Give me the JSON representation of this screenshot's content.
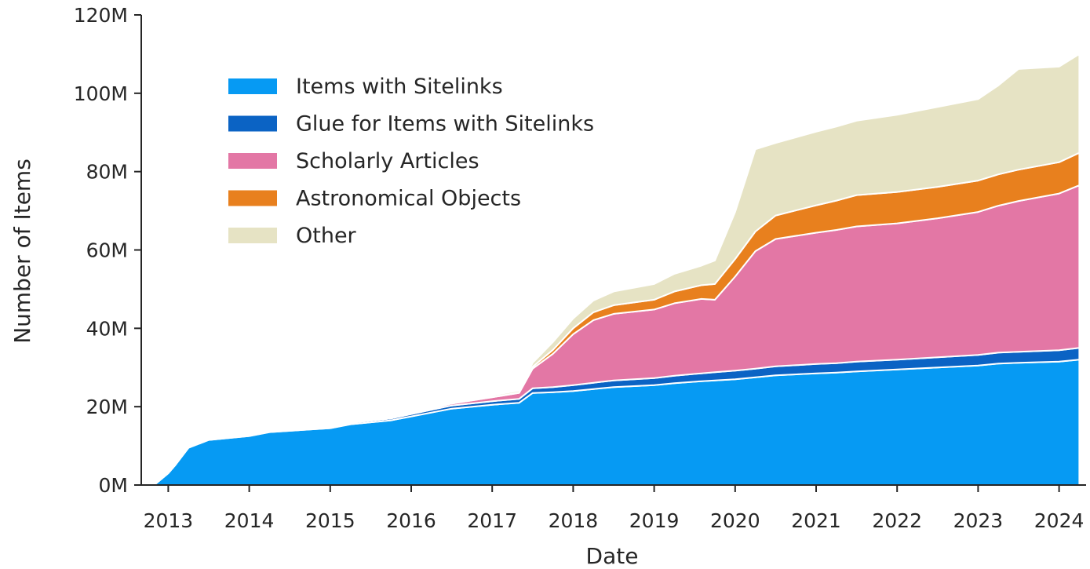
{
  "chart_data": {
    "type": "area",
    "stacked": true,
    "xlabel": "Date",
    "ylabel": "Number of Items",
    "x_ticks": [
      "2013",
      "2014",
      "2015",
      "2016",
      "2017",
      "2018",
      "2019",
      "2020",
      "2021",
      "2022",
      "2023",
      "2024"
    ],
    "y_ticks": [
      "0M",
      "20M",
      "40M",
      "60M",
      "80M",
      "100M",
      "120M"
    ],
    "ylim": [
      0,
      120
    ],
    "y_unit": "M",
    "xlim": [
      "2012-09",
      "2024-05"
    ],
    "legend_position": "upper-left",
    "grid": false,
    "x": [
      "2012-10-29",
      "2013-01",
      "2013-02",
      "2013-04",
      "2013-07",
      "2014-01",
      "2014-04",
      "2015-01",
      "2015-04",
      "2015-10",
      "2016-01",
      "2016-07",
      "2017-01",
      "2017-05",
      "2017-07",
      "2017-10",
      "2018-01",
      "2018-04",
      "2018-07",
      "2019-01",
      "2019-04",
      "2019-08",
      "2019-10",
      "2020-01",
      "2020-04",
      "2020-07",
      "2021-01",
      "2021-04",
      "2021-07",
      "2022-01",
      "2022-07",
      "2023-01",
      "2023-04",
      "2023-07",
      "2024-01",
      "2024-04"
    ],
    "series": [
      {
        "name": "Items with Sitelinks",
        "color": "#069af3",
        "values": [
          0,
          3,
          5,
          9.5,
          11.5,
          12.5,
          13.5,
          14.5,
          15.5,
          16.5,
          17.5,
          19.5,
          20.5,
          21,
          23.5,
          23.7,
          24,
          24.5,
          25,
          25.5,
          26,
          26.5,
          26.7,
          27,
          27.5,
          28,
          28.5,
          28.7,
          29,
          29.5,
          30,
          30.5,
          31,
          31.2,
          31.5,
          32
        ]
      },
      {
        "name": "Glue for Items with Sitelinks",
        "color": "#0b63c4",
        "values": [
          0,
          0,
          0,
          0.1,
          0.1,
          0.2,
          0.2,
          0.3,
          0.4,
          0.5,
          0.6,
          0.8,
          0.9,
          1,
          1.2,
          1.3,
          1.5,
          1.6,
          1.7,
          1.8,
          1.9,
          2,
          2.1,
          2.2,
          2.2,
          2.3,
          2.4,
          2.4,
          2.5,
          2.5,
          2.6,
          2.7,
          2.8,
          2.8,
          2.9,
          3
        ]
      },
      {
        "name": "Scholarly Articles",
        "color": "#e377a5",
        "values": [
          0,
          0,
          0,
          0,
          0,
          0,
          0,
          0,
          0,
          0,
          0.2,
          0.5,
          1,
          1.5,
          5,
          8.5,
          13,
          16,
          17,
          17.5,
          18.5,
          19,
          18.5,
          24,
          30,
          32.5,
          33.5,
          34,
          34.5,
          34.8,
          35.5,
          36.5,
          37.5,
          38.5,
          40,
          41.5
        ]
      },
      {
        "name": "Astronomical Objects",
        "color": "#e8801e",
        "values": [
          0,
          0,
          0,
          0,
          0,
          0,
          0,
          0,
          0,
          0,
          0,
          0,
          0.1,
          0.1,
          0.5,
          1,
          1.5,
          2,
          2.2,
          2.5,
          3,
          3.5,
          4,
          4.5,
          5,
          6,
          7,
          7.5,
          8,
          8,
          8,
          8,
          8,
          8,
          8,
          8.3
        ]
      },
      {
        "name": "Other",
        "color": "#e6e3c4",
        "values": [
          0,
          0,
          0,
          0,
          0,
          0,
          0,
          0,
          0,
          0,
          0.2,
          0.3,
          0.4,
          0.5,
          1,
          2,
          2.5,
          3,
          3.5,
          4,
          4.5,
          5,
          6,
          12,
          21,
          18.5,
          18.8,
          18.9,
          19,
          19.7,
          20.4,
          20.8,
          22.7,
          25.7,
          24.4,
          25.2
        ]
      }
    ]
  }
}
